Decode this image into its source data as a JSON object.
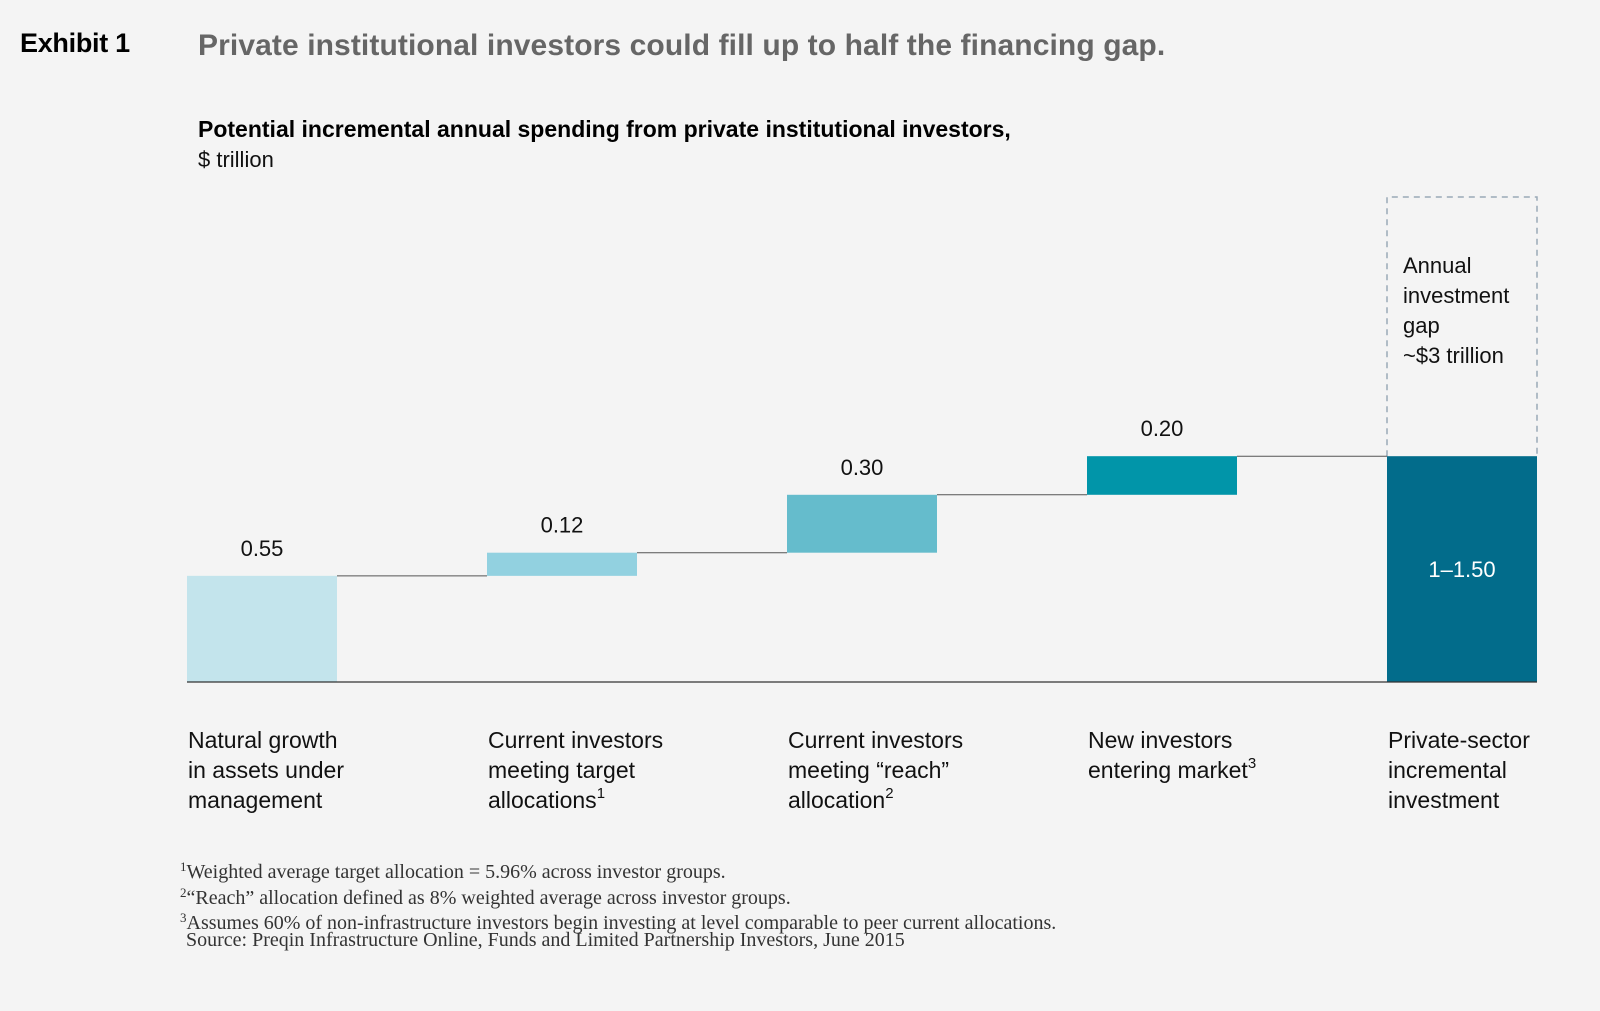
{
  "exhibit": "Exhibit 1",
  "headline": "Private institutional investors could fill up to half the financing gap.",
  "chart_data": {
    "type": "bar",
    "subtype": "waterfall",
    "title": "Potential incremental annual spending from private institutional investors,",
    "subtitle": "$ trillion",
    "categories": [
      {
        "label": "Natural growth in assets under management",
        "lines": [
          "Natural growth",
          "in assets under",
          "management"
        ],
        "footnote": ""
      },
      {
        "label": "Current investors meeting target allocations",
        "lines": [
          "Current investors",
          "meeting target",
          "allocations"
        ],
        "footnote": "1"
      },
      {
        "label": "Current investors meeting “reach” allocation",
        "lines": [
          "Current investors",
          "meeting “reach”",
          "allocation"
        ],
        "footnote": "2"
      },
      {
        "label": "New investors entering market",
        "lines": [
          "New investors",
          "entering market"
        ],
        "footnote": "3"
      },
      {
        "label": "Private-sector incremental investment",
        "lines": [
          "Private-sector",
          "incremental",
          "investment"
        ],
        "footnote": ""
      }
    ],
    "values": [
      0.55,
      0.12,
      0.3,
      0.2,
      1.17
    ],
    "value_labels": [
      "0.55",
      "0.12",
      "0.30",
      "0.20",
      "1–1.50"
    ],
    "total_index": 4,
    "colors": [
      "#c3e4ec",
      "#92d1e0",
      "#65bccc",
      "#0195a9",
      "#026c8b"
    ],
    "annotation": {
      "lines": [
        "Annual",
        "investment",
        "gap",
        "~$3 trillion"
      ],
      "value_label": "~$3 trillion"
    },
    "ylim": [
      0,
      1.5
    ]
  },
  "footnotes": [
    {
      "mark": "1",
      "text": "Weighted average target allocation = 5.96% across investor groups."
    },
    {
      "mark": "2",
      "text": "“Reach” allocation defined as 8% weighted average across investor groups."
    },
    {
      "mark": "3",
      "text": "Assumes 60% of non-infrastructure investors begin investing at level comparable to peer current allocations."
    }
  ],
  "source": "Source: Preqin Infrastructure Online, Funds and Limited Partnership Investors, June 2015"
}
